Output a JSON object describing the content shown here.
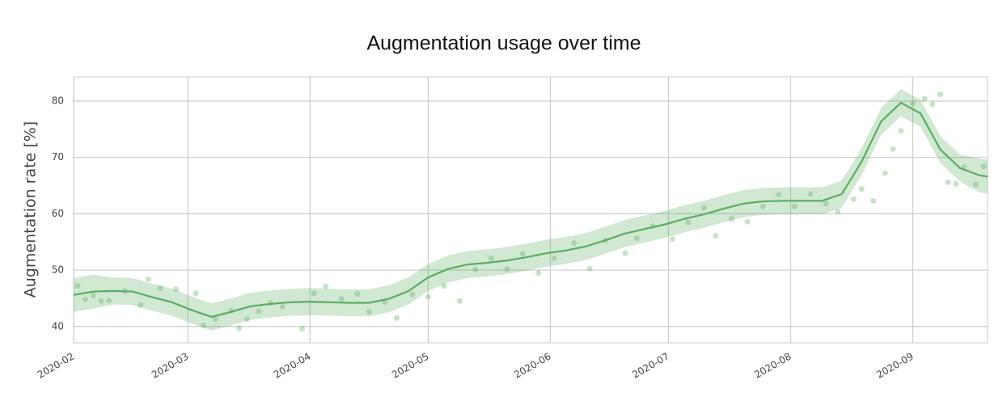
{
  "chart_data": {
    "type": "line",
    "title": "Augmentation usage over time",
    "y_label": "Augmentation rate [%]",
    "color": "#5aae61",
    "grid": true,
    "xlim": [
      0,
      232
    ],
    "ylim": [
      37.1,
      84.3
    ],
    "xticks": [
      {
        "value": 0,
        "label": "2020-02"
      },
      {
        "value": 29,
        "label": "2020-03"
      },
      {
        "value": 60,
        "label": "2020-04"
      },
      {
        "value": 90,
        "label": "2020-05"
      },
      {
        "value": 121,
        "label": "2020-06"
      },
      {
        "value": 151,
        "label": "2020-07"
      },
      {
        "value": 182,
        "label": "2020-08"
      },
      {
        "value": 213,
        "label": "2020-09"
      }
    ],
    "yticks": [
      40,
      50,
      60,
      70,
      80
    ],
    "x": [
      0,
      5,
      10,
      15,
      20,
      25,
      30,
      35,
      40,
      45,
      50,
      55,
      60,
      65,
      70,
      75,
      80,
      85,
      90,
      95,
      100,
      105,
      110,
      115,
      120,
      125,
      130,
      135,
      140,
      145,
      150,
      155,
      160,
      165,
      170,
      175,
      180,
      185,
      190,
      195,
      200,
      205,
      210,
      215,
      220,
      225,
      230,
      232
    ],
    "values": [
      45.6,
      46.2,
      46.3,
      46.2,
      45.2,
      44.3,
      42.9,
      41.7,
      42.6,
      43.6,
      44.0,
      44.3,
      44.4,
      44.3,
      44.2,
      44.2,
      44.9,
      46.3,
      48.7,
      50.2,
      51.0,
      51.3,
      51.7,
      52.3,
      53.0,
      53.5,
      54.2,
      55.3,
      56.5,
      57.3,
      58.1,
      59.1,
      59.9,
      60.9,
      61.8,
      62.2,
      62.3,
      62.3,
      62.3,
      63.5,
      69.2,
      76.4,
      79.7,
      77.8,
      71.4,
      68.1,
      66.8,
      66.6
    ],
    "band": {
      "lower": [
        42.6,
        43.2,
        43.9,
        43.8,
        42.8,
        41.9,
        40.5,
        39.3,
        40.2,
        41.2,
        41.6,
        41.9,
        42.0,
        41.9,
        41.8,
        41.8,
        42.5,
        43.9,
        46.3,
        47.8,
        48.6,
        48.9,
        49.3,
        49.9,
        50.6,
        51.1,
        51.8,
        52.9,
        54.1,
        54.9,
        55.7,
        56.7,
        57.5,
        58.5,
        59.4,
        59.8,
        59.9,
        59.9,
        59.9,
        61.1,
        66.8,
        74.0,
        77.3,
        75.4,
        69.0,
        65.7,
        63.8,
        63.6
      ],
      "upper": [
        48.6,
        49.2,
        48.7,
        48.6,
        47.6,
        46.7,
        45.3,
        44.1,
        45.0,
        46.0,
        46.4,
        46.7,
        46.8,
        46.7,
        46.6,
        46.6,
        47.3,
        48.7,
        51.1,
        52.6,
        53.4,
        53.7,
        54.1,
        54.7,
        55.4,
        55.9,
        56.6,
        57.7,
        58.9,
        59.7,
        60.5,
        61.5,
        62.3,
        63.3,
        64.2,
        64.6,
        64.7,
        64.7,
        64.7,
        65.9,
        71.6,
        78.8,
        82.1,
        80.2,
        73.8,
        70.5,
        69.8,
        69.6
      ]
    },
    "points": {
      "x": [
        1,
        3,
        5,
        7,
        9,
        13,
        17,
        19,
        22,
        26,
        31,
        33,
        36,
        40,
        42,
        44,
        47,
        50,
        53,
        58,
        61,
        64,
        68,
        72,
        75,
        79,
        82,
        86,
        90,
        94,
        98,
        102,
        106,
        110,
        114,
        118,
        122,
        127,
        131,
        135,
        140,
        143,
        147,
        152,
        156,
        160,
        163,
        167,
        171,
        175,
        179,
        183,
        187,
        191,
        194,
        198,
        200,
        203,
        206,
        208,
        210,
        213,
        216,
        218,
        220,
        222,
        224,
        226,
        229,
        231
      ],
      "values": [
        47.2,
        44.8,
        45.5,
        44.5,
        44.6,
        46.3,
        43.8,
        48.4,
        46.8,
        46.6,
        45.9,
        40.2,
        41.3,
        42.8,
        39.7,
        41.3,
        42.7,
        44.2,
        43.5,
        39.6,
        45.9,
        47.1,
        44.9,
        45.8,
        42.6,
        44.3,
        41.5,
        45.7,
        45.3,
        47.2,
        44.5,
        50.1,
        52.1,
        50.2,
        52.9,
        49.5,
        52.1,
        54.8,
        50.3,
        55.2,
        53.0,
        55.7,
        57.8,
        55.5,
        58.5,
        61.1,
        56.1,
        59.1,
        58.6,
        61.3,
        63.4,
        61.3,
        63.5,
        61.8,
        60.4,
        62.6,
        64.4,
        62.3,
        67.2,
        71.5,
        74.7,
        79.6,
        80.4,
        79.4,
        81.2,
        65.6,
        65.3,
        68.3,
        65.2,
        68.4
      ]
    }
  }
}
